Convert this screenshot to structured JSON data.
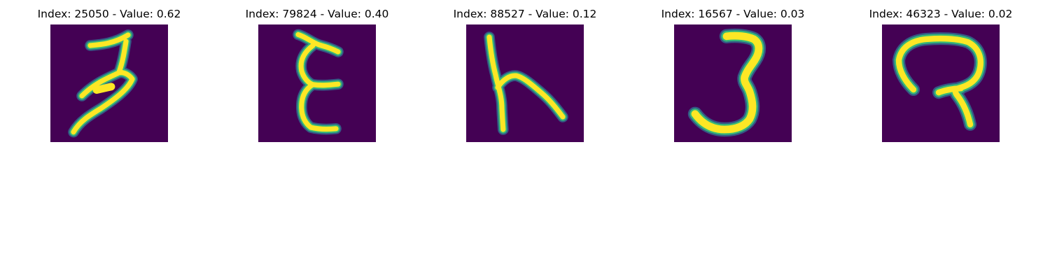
{
  "colors": {
    "background": "#440154",
    "glow_outer": "#31688e",
    "glow_mid": "#35b779",
    "glow_inner": "#6ece58",
    "stroke_core": "#fde725"
  },
  "panels": [
    {
      "title": "Index: 25050 - Value: 0.62",
      "index": 25050,
      "value": 0.62,
      "glyph": "handwritten-character"
    },
    {
      "title": "Index: 79824 - Value: 0.40",
      "index": 79824,
      "value": 0.4,
      "glyph": "handwritten-character"
    },
    {
      "title": "Index: 88527 - Value: 0.12",
      "index": 88527,
      "value": 0.12,
      "glyph": "handwritten-character"
    },
    {
      "title": "Index: 16567 - Value: 0.03",
      "index": 16567,
      "value": 0.03,
      "glyph": "handwritten-character"
    },
    {
      "title": "Index: 46323 - Value: 0.02",
      "index": 46323,
      "value": 0.02,
      "glyph": "handwritten-character"
    }
  ]
}
